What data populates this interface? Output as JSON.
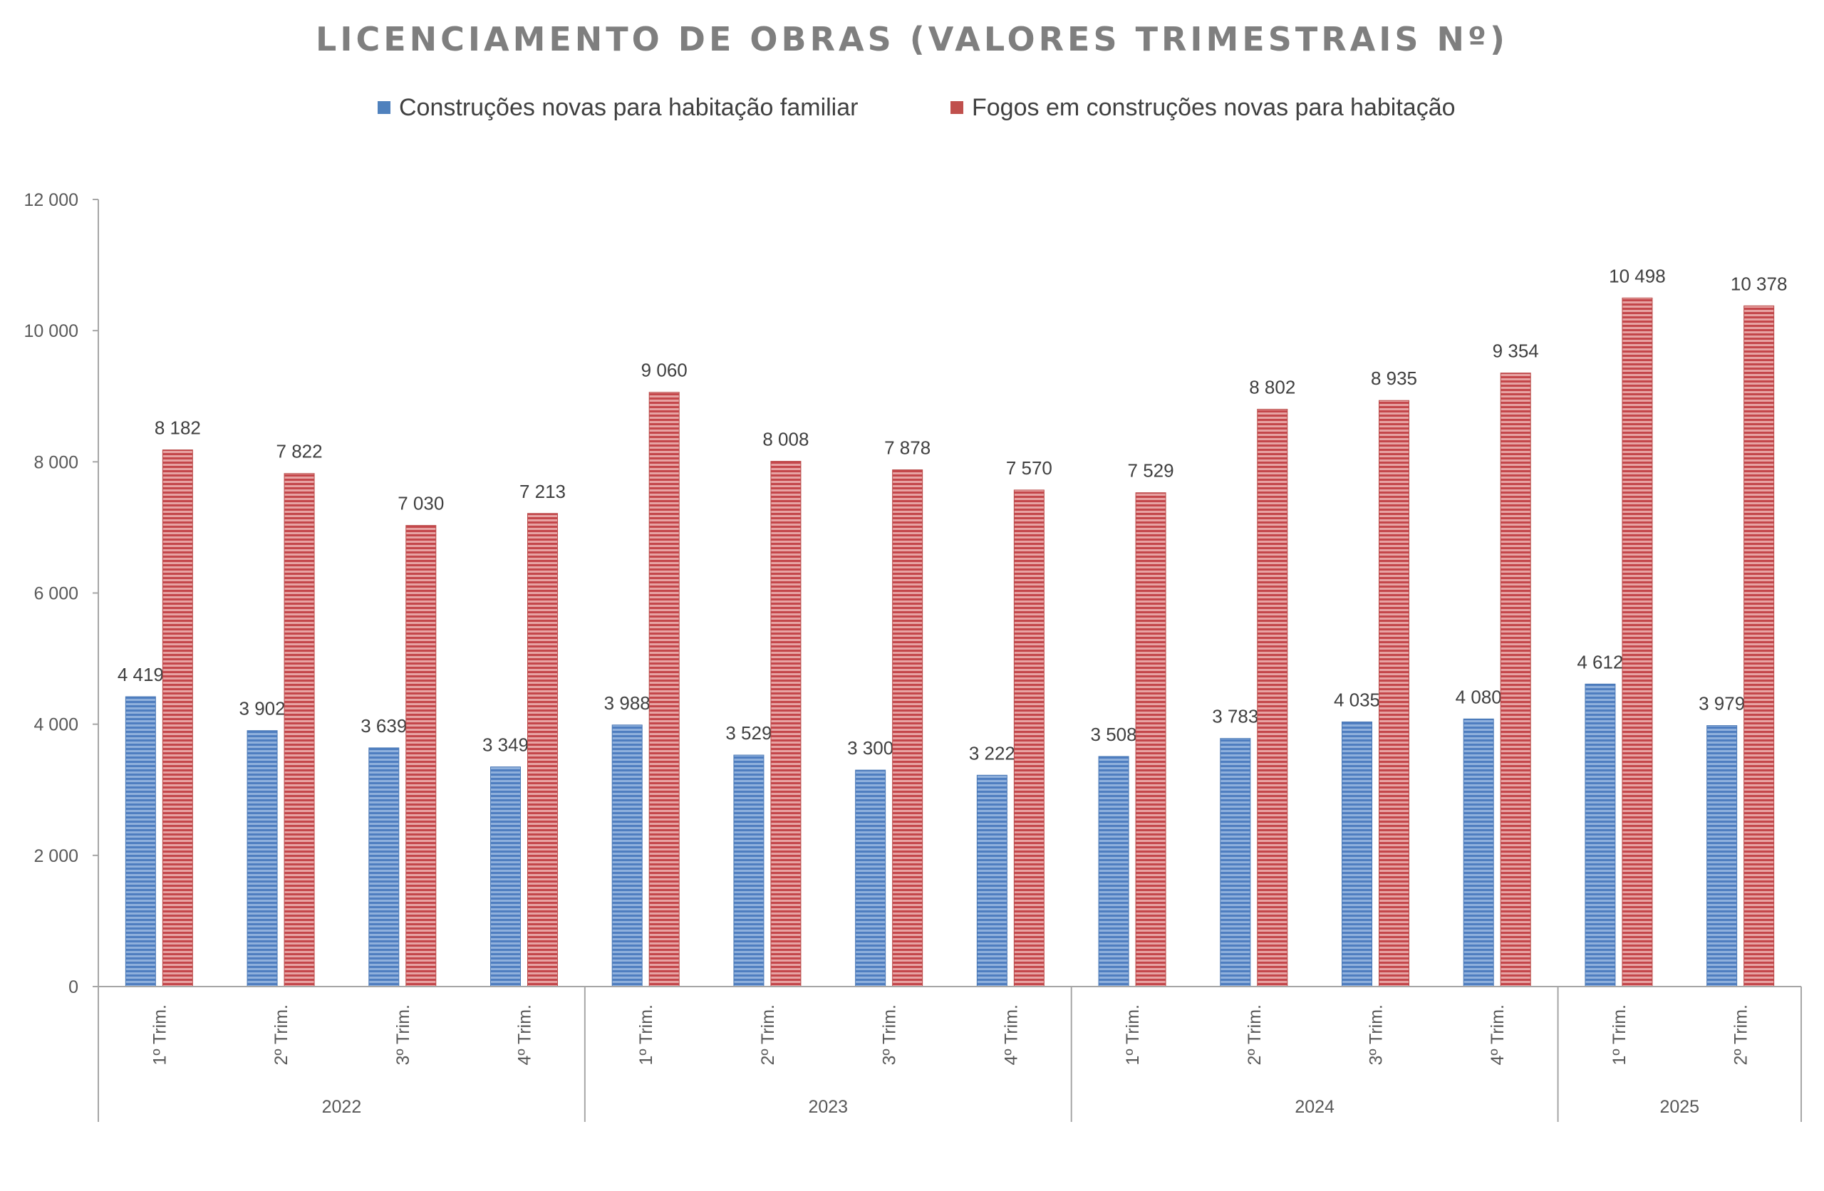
{
  "chart_data": {
    "type": "bar",
    "title": "LICENCIAMENTO DE OBRAS (VALORES TRIMESTRAIS Nº)",
    "xlabel": "",
    "ylabel": "",
    "ylim": [
      0,
      12000
    ],
    "yticks": [
      "0",
      "2 000",
      "4 000",
      "6 000",
      "8 000",
      "10 000",
      "12 000"
    ],
    "ytick_values": [
      0,
      2000,
      4000,
      6000,
      8000,
      10000,
      12000
    ],
    "legend_position": "top",
    "grid": false,
    "groups": [
      {
        "year": "2022",
        "quarters": [
          "1º Trim.",
          "2º Trim.",
          "3º Trim.",
          "4º Trim."
        ]
      },
      {
        "year": "2023",
        "quarters": [
          "1º Trim.",
          "2º Trim.",
          "3º Trim.",
          "4º Trim."
        ]
      },
      {
        "year": "2024",
        "quarters": [
          "1º Trim.",
          "2º Trim.",
          "3º Trim.",
          "4º Trim."
        ]
      },
      {
        "year": "2025",
        "quarters": [
          "1º Trim.",
          "2º Trim."
        ]
      }
    ],
    "series": [
      {
        "name": "Construções novas para habitação familiar",
        "color": "#4f81bd",
        "values": [
          4419,
          3902,
          3639,
          3349,
          3988,
          3529,
          3300,
          3222,
          3508,
          3783,
          4035,
          4080,
          4612,
          3979
        ],
        "labels": [
          "4 419",
          "3 902",
          "3 639",
          "3 349",
          "3 988",
          "3 529",
          "3 300",
          "3 222",
          "3 508",
          "3 783",
          "4 035",
          "4 080",
          "4 612",
          "3 979"
        ]
      },
      {
        "name": "Fogos em construções novas para habitação",
        "color": "#c0504d",
        "values": [
          8182,
          7822,
          7030,
          7213,
          9060,
          8008,
          7878,
          7570,
          7529,
          8802,
          8935,
          9354,
          10498,
          10378
        ],
        "labels": [
          "8 182",
          "7 822",
          "7 030",
          "7 213",
          "9 060",
          "8 008",
          "7 878",
          "7 570",
          "7 529",
          "8 802",
          "8 935",
          "9 354",
          "10 498",
          "10 378"
        ]
      }
    ]
  }
}
